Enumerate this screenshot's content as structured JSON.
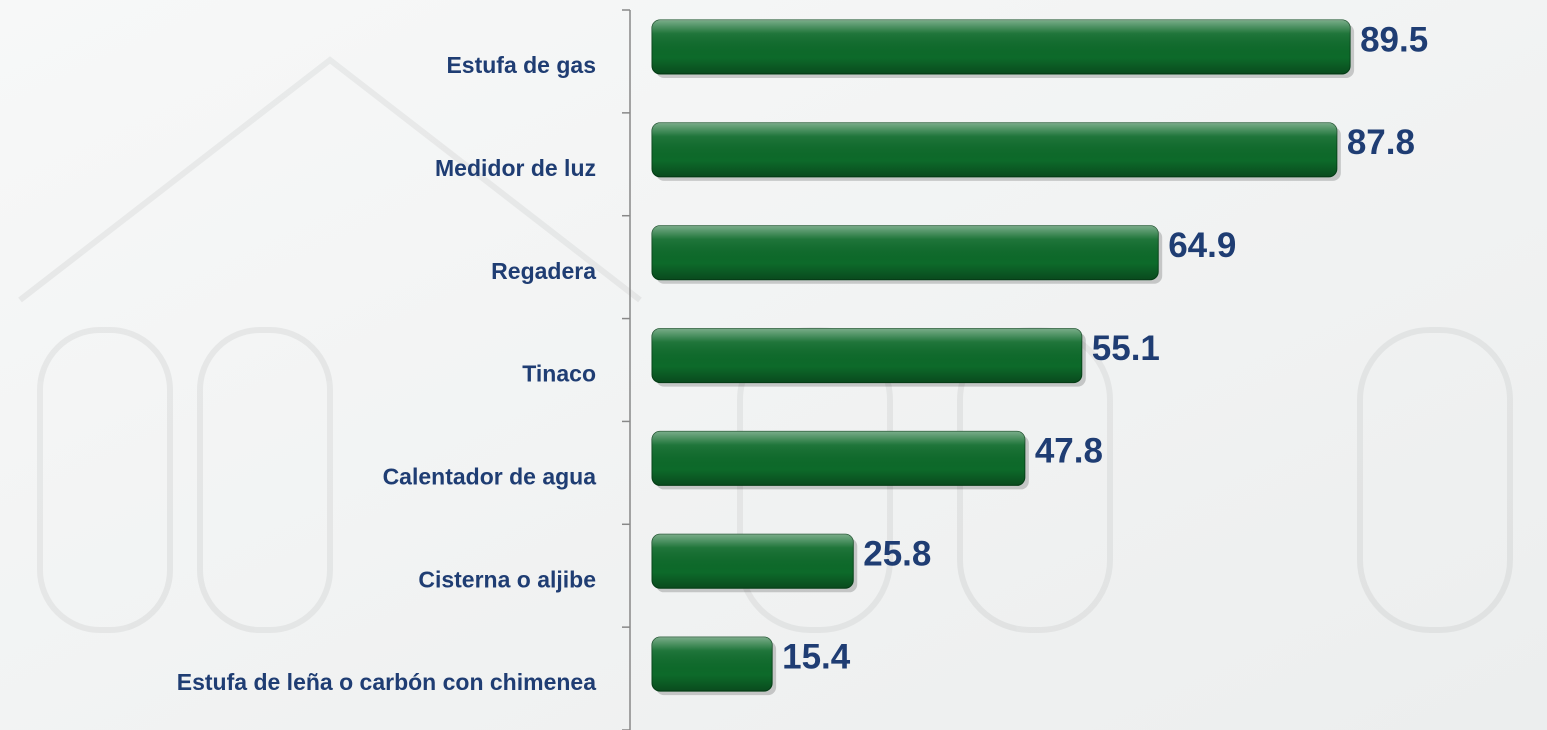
{
  "chart_data": {
    "type": "bar",
    "orientation": "horizontal",
    "categories": [
      "Estufa de gas",
      "Medidor de luz",
      "Regadera",
      "Tinaco",
      "Calentador de agua",
      "Cisterna o aljibe",
      "Estufa de leña o carbón con chimenea"
    ],
    "values": [
      89.5,
      87.8,
      64.9,
      55.1,
      47.8,
      25.8,
      15.4
    ],
    "color": "#0d6a2a",
    "xlim": [
      0,
      100
    ]
  }
}
